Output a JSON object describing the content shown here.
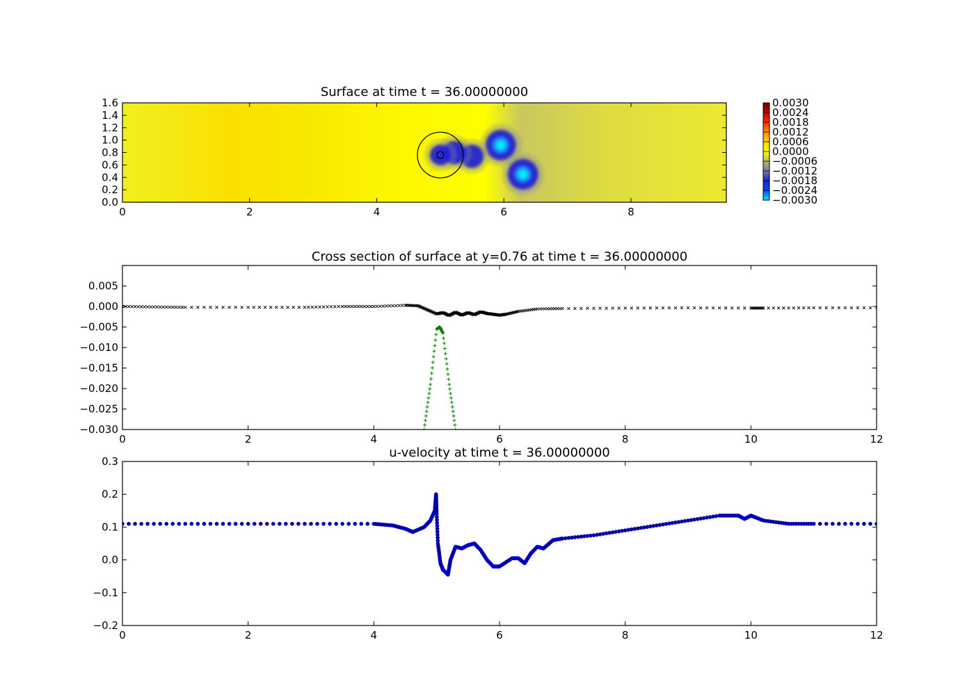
{
  "chart_data": [
    {
      "id": "surface",
      "type": "heatmap",
      "title": "Surface at time t =    36.00000000",
      "xlim": [
        0,
        9.5
      ],
      "ylim": [
        0,
        1.6
      ],
      "x_ticks": [
        "0",
        "2",
        "4",
        "6",
        "8"
      ],
      "y_ticks": [
        "0.0",
        "0.2",
        "0.4",
        "0.6",
        "0.8",
        "1.0",
        "1.2",
        "1.4",
        "1.6"
      ],
      "grid": false,
      "background_level": 0.0,
      "depressions": [
        {
          "x": 5.95,
          "y": 0.92,
          "value": -0.003
        },
        {
          "x": 6.3,
          "y": 0.45,
          "value": -0.003
        },
        {
          "x": 5.5,
          "y": 0.74,
          "value": -0.0019
        },
        {
          "x": 5.22,
          "y": 0.8,
          "value": -0.0019
        },
        {
          "x": 5.0,
          "y": 0.76,
          "value": -0.0015
        }
      ],
      "circle": {
        "x": 5.0,
        "y": 0.76,
        "r": 0.36
      },
      "colorbar": {
        "ticks": [
          "0.0030",
          "0.0024",
          "0.0018",
          "0.0012",
          "0.0006",
          "0.0000",
          "−0.0006",
          "−0.0012",
          "−0.0018",
          "−0.0024",
          "−0.0030"
        ],
        "colors": [
          "#6b0000",
          "#c80000",
          "#ff2a00",
          "#ff8c00",
          "#ffd000",
          "#ffff00",
          "#b8b870",
          "#7a7a9e",
          "#1f1fd8",
          "#0050ff",
          "#00e5ff"
        ]
      }
    },
    {
      "id": "cross-section",
      "type": "scatter",
      "title": "Cross section of surface at y=0.76 at time t =    36.00000000",
      "xlim": [
        0,
        12
      ],
      "ylim": [
        -0.03,
        0.01
      ],
      "x_ticks": [
        "0",
        "2",
        "4",
        "6",
        "8",
        "10",
        "12"
      ],
      "y_ticks": [
        "0.005",
        "0.000",
        "−0.005",
        "−0.010",
        "−0.015",
        "−0.020",
        "−0.025",
        "−0.030"
      ],
      "grid": false,
      "series": [
        {
          "color": "#000000",
          "marker": "x",
          "x": [
            0,
            0.5,
            1.0,
            2.0,
            2.9,
            3.5,
            4.0,
            4.5,
            4.7,
            4.85,
            5.0,
            5.1,
            5.2,
            5.3,
            5.4,
            5.5,
            5.6,
            5.7,
            5.8,
            5.9,
            6.0,
            6.1,
            6.3,
            6.6,
            7.0,
            8.0,
            9.0,
            10.0,
            10.2,
            11.0,
            12.0
          ],
          "y": [
            0.0,
            -0.0001,
            -0.0002,
            -0.0002,
            -0.0002,
            0.0,
            0.0,
            0.0003,
            0.0002,
            -0.0008,
            -0.0018,
            -0.0015,
            -0.0022,
            -0.0014,
            -0.0021,
            -0.0015,
            -0.002,
            -0.0013,
            -0.0017,
            -0.0019,
            -0.0021,
            -0.0019,
            -0.0012,
            -0.0006,
            -0.0005,
            -0.0004,
            -0.0003,
            -0.0004,
            -0.0004,
            -0.0003,
            -0.0003
          ]
        },
        {
          "color": "#008000",
          "marker": "+",
          "x": [
            4.8,
            4.9,
            5.0,
            5.05,
            5.1,
            5.2,
            5.3
          ],
          "y": [
            -0.03,
            -0.019,
            -0.0055,
            -0.005,
            -0.0065,
            -0.019,
            -0.03
          ]
        }
      ]
    },
    {
      "id": "u-velocity",
      "type": "scatter",
      "title": "u-velocity at time t =    36.00000000",
      "xlim": [
        0,
        12
      ],
      "ylim": [
        -0.2,
        0.3
      ],
      "x_ticks": [
        "0",
        "2",
        "4",
        "6",
        "8",
        "10",
        "12"
      ],
      "y_ticks": [
        "0.3",
        "0.2",
        "0.1",
        "0.0",
        "−0.1",
        "−0.2"
      ],
      "grid": false,
      "series": [
        {
          "color": "#00008b",
          "marker": "o",
          "x": [
            0,
            1.0,
            2.0,
            3.0,
            4.0,
            4.3,
            4.5,
            4.62,
            4.8,
            4.9,
            4.97,
            4.99,
            5.0,
            5.02,
            5.06,
            5.1,
            5.18,
            5.22,
            5.3,
            5.4,
            5.5,
            5.6,
            5.7,
            5.8,
            5.9,
            6.0,
            6.2,
            6.3,
            6.4,
            6.5,
            6.6,
            6.7,
            6.85,
            7.0,
            7.5,
            8.0,
            8.5,
            9.0,
            9.5,
            9.8,
            9.9,
            10.0,
            10.2,
            10.6,
            11.0,
            12.0
          ],
          "y": [
            0.11,
            0.11,
            0.11,
            0.11,
            0.11,
            0.105,
            0.095,
            0.085,
            0.1,
            0.12,
            0.15,
            0.2,
            0.14,
            0.05,
            -0.01,
            -0.03,
            -0.045,
            0.0,
            0.04,
            0.035,
            0.045,
            0.05,
            0.03,
            0.0,
            -0.02,
            -0.02,
            0.005,
            0.005,
            -0.01,
            0.02,
            0.04,
            0.035,
            0.06,
            0.065,
            0.075,
            0.09,
            0.105,
            0.12,
            0.135,
            0.135,
            0.125,
            0.135,
            0.12,
            0.11,
            0.11,
            0.11
          ]
        }
      ]
    }
  ]
}
